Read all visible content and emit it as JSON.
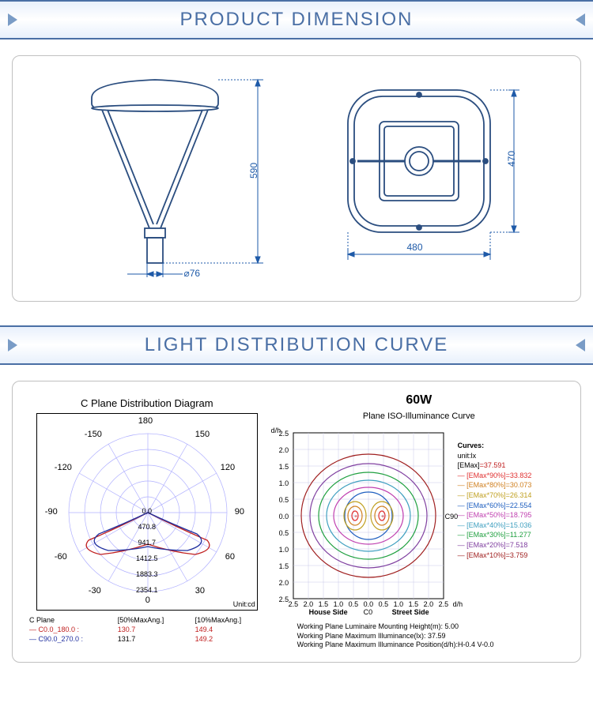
{
  "sections": {
    "dimension": {
      "title": "PRODUCT DIMENSION"
    },
    "distribution": {
      "title": "LIGHT DISTRIBUTION CURVE"
    }
  },
  "dimensions": {
    "side": {
      "height": "590",
      "base": "⌀76"
    },
    "top": {
      "width": "480",
      "depth": "470"
    },
    "color_line": "#2a4d7f",
    "color_dim": "#1e5aa8"
  },
  "polar": {
    "title": "C Plane Distribution Diagram",
    "angles": [
      "180",
      "-150",
      "150",
      "-120",
      "120",
      "-90",
      "90",
      "-60",
      "60",
      "-30",
      "30",
      "0"
    ],
    "rings": [
      "0.0",
      "470.8",
      "941.7",
      "1412.5",
      "1883.3",
      "2354.1"
    ],
    "unit": "Unit:cd",
    "legend_header": [
      "C Plane",
      "[50%MaxAng.]",
      "[10%MaxAng.]"
    ],
    "legend_rows": [
      {
        "label": "C0.0_180.0 :",
        "v1": "130.7",
        "v2": "149.4",
        "color": "#c02020"
      },
      {
        "label": "C90.0_270.0 :",
        "v1": "131.7",
        "v2": "149.2",
        "color": "#2030a0"
      }
    ]
  },
  "iso": {
    "wattage": "60W",
    "title": "Plane ISO-Illuminance Curve",
    "y_label": "d/h",
    "y_ticks": [
      "2.5",
      "2.0",
      "1.5",
      "1.0",
      "0.5",
      "0.0",
      "0.5",
      "1.0",
      "1.5",
      "2.0",
      "2.5"
    ],
    "x_ticks": [
      "2.5",
      "2.0",
      "1.5",
      "1.0",
      "0.5",
      "0.0",
      "0.5",
      "1.0",
      "1.5",
      "2.0",
      "2.5"
    ],
    "x_label_left": "House Side",
    "x_label_right": "Street Side",
    "x_unit": "d/h",
    "c0": "C0",
    "c90": "C90",
    "legend_title": "Curves:",
    "legend_unit": "unit:lx",
    "emax": {
      "label": "[EMax]",
      "value": "=37.591",
      "color": "#000000"
    },
    "curves": [
      {
        "label": "[EMax*90%]=33.832",
        "color": "#e03030"
      },
      {
        "label": "[EMax*80%]=30.073",
        "color": "#d08020"
      },
      {
        "label": "[EMax*70%]=26.314",
        "color": "#c0a020"
      },
      {
        "label": "[EMax*60%]=22.554",
        "color": "#2060c0"
      },
      {
        "label": "[EMax*50%]=18.795",
        "color": "#c040b0"
      },
      {
        "label": "[EMax*40%]=15.036",
        "color": "#40a0c0"
      },
      {
        "label": "[EMax*30%]=11.277",
        "color": "#20a040"
      },
      {
        "label": "[EMax*20%]=7.518",
        "color": "#8040a0"
      },
      {
        "label": "[EMax*10%]=3.759",
        "color": "#a02020"
      }
    ],
    "working_plane": [
      "Working Plane Luminaire Mounting Height(m): 5.00",
      "Working Plane Maximum Illuminance(lx): 37.59",
      "Working Plane Maximum Illuminance Position(d/h):H-0.4 V-0.0"
    ]
  }
}
